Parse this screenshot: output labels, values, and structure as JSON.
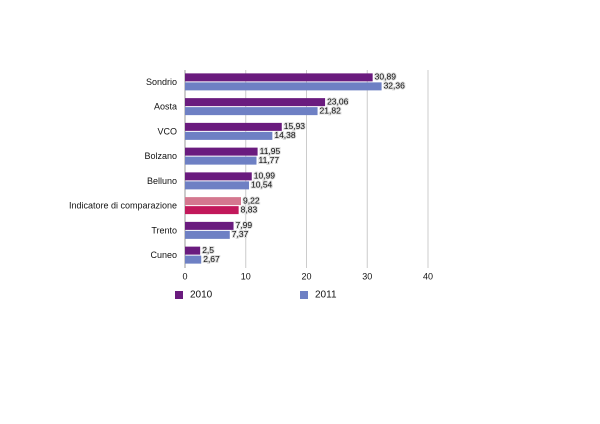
{
  "chart_data": {
    "type": "hbar",
    "categories": [
      "Sondrio",
      "Aosta",
      "VCO",
      "Bolzano",
      "Belluno",
      "Indicatore di comparazione",
      "Trento",
      "Cuneo"
    ],
    "series": [
      {
        "name": "2010",
        "color": "#6a1b7e",
        "colors": [
          "#6a1b7e",
          "#6a1b7e",
          "#6a1b7e",
          "#6a1b7e",
          "#6a1b7e",
          "#d4778f",
          "#6a1b7e",
          "#6a1b7e"
        ],
        "values": [
          30.89,
          23.06,
          15.93,
          11.95,
          10.99,
          9.22,
          7.99,
          2.5
        ],
        "value_labels": [
          "30,89",
          "23,06",
          "15,93",
          "11,95",
          "10,99",
          "9,22",
          "7,99",
          "2,5"
        ]
      },
      {
        "name": "2011",
        "color": "#6e80c4",
        "colors": [
          "#6e80c4",
          "#6e80c4",
          "#6e80c4",
          "#6e80c4",
          "#6e80c4",
          "#c2185b",
          "#6e80c4",
          "#6e80c4"
        ],
        "values": [
          32.36,
          21.82,
          14.38,
          11.77,
          10.54,
          8.83,
          7.37,
          2.67
        ],
        "value_labels": [
          "32,36",
          "21,82",
          "14,38",
          "11,77",
          "10,54",
          "8,83",
          "7,37",
          "2,67"
        ]
      }
    ],
    "xlim": [
      0,
      40
    ],
    "xticks": [
      0,
      10,
      20,
      30,
      40
    ],
    "grid": true
  }
}
